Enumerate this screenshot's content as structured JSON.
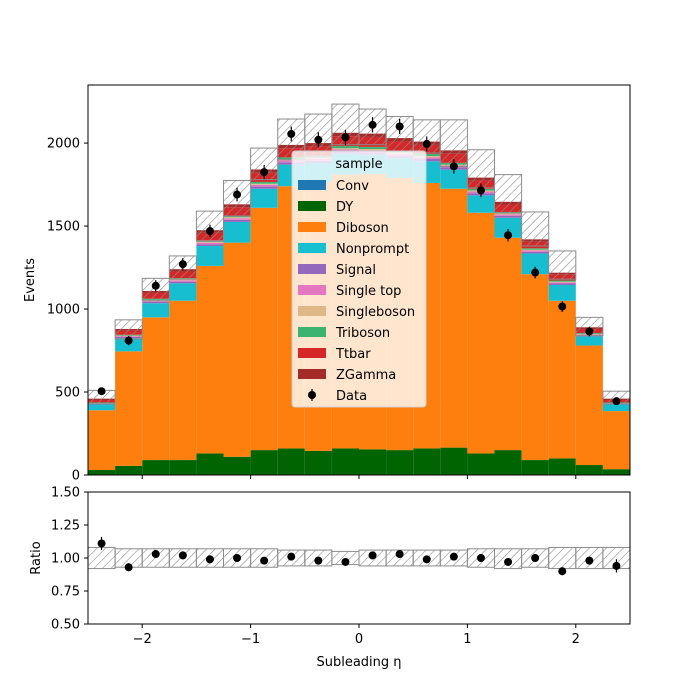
{
  "chart_data": [
    {
      "type": "bar",
      "stacked": true,
      "panel": "main",
      "title": "",
      "xlabel": "",
      "ylabel": "Events",
      "xlim": [
        -2.5,
        2.5
      ],
      "ylim": [
        0,
        2350
      ],
      "yticks": [
        "0",
        "500",
        "1000",
        "1500",
        "2000"
      ],
      "bin_edges": [
        -2.5,
        -2.25,
        -2.0,
        -1.75,
        -1.5,
        -1.25,
        -1.0,
        -0.75,
        -0.5,
        -0.25,
        0.0,
        0.25,
        0.5,
        0.75,
        1.0,
        1.25,
        1.5,
        1.75,
        2.0,
        2.25,
        2.5
      ],
      "series": [
        {
          "name": "Conv",
          "color": "#1f77b4",
          "values": [
            0,
            0,
            0,
            0,
            0,
            0,
            0,
            0,
            0,
            0,
            0,
            0,
            0,
            0,
            0,
            0,
            0,
            0,
            0,
            0
          ]
        },
        {
          "name": "DY",
          "color": "#006400",
          "values": [
            30,
            55,
            90,
            90,
            130,
            110,
            150,
            160,
            145,
            160,
            155,
            150,
            160,
            165,
            130,
            150,
            90,
            100,
            60,
            35
          ]
        },
        {
          "name": "Diboson",
          "color": "#ff7f0e",
          "values": [
            360,
            690,
            860,
            960,
            1130,
            1290,
            1460,
            1580,
            1620,
            1650,
            1660,
            1640,
            1600,
            1560,
            1450,
            1280,
            1120,
            950,
            720,
            350
          ]
        },
        {
          "name": "Nonprompt",
          "color": "#17becf",
          "values": [
            35,
            80,
            85,
            105,
            120,
            125,
            115,
            130,
            115,
            125,
            115,
            120,
            130,
            115,
            105,
            120,
            125,
            95,
            55,
            40
          ]
        },
        {
          "name": "Signal",
          "color": "#9467bd",
          "values": [
            4,
            7,
            9,
            10,
            11,
            12,
            13,
            14,
            14,
            15,
            15,
            14,
            14,
            13,
            13,
            12,
            10,
            9,
            7,
            4
          ]
        },
        {
          "name": "Single top",
          "color": "#e377c2",
          "values": [
            3,
            5,
            7,
            8,
            9,
            10,
            11,
            11,
            12,
            12,
            12,
            12,
            11,
            11,
            10,
            9,
            8,
            7,
            5,
            3
          ]
        },
        {
          "name": "Singleboson",
          "color": "#deb887",
          "values": [
            2,
            3,
            4,
            5,
            5,
            6,
            6,
            7,
            7,
            7,
            7,
            7,
            7,
            6,
            6,
            5,
            5,
            4,
            3,
            2
          ]
        },
        {
          "name": "Triboson",
          "color": "#3cb371",
          "values": [
            3,
            5,
            7,
            8,
            9,
            10,
            11,
            12,
            12,
            13,
            13,
            12,
            12,
            11,
            10,
            9,
            8,
            7,
            5,
            3
          ]
        },
        {
          "name": "Ttbar",
          "color": "#d62728",
          "values": [
            15,
            25,
            35,
            40,
            45,
            50,
            55,
            55,
            55,
            60,
            60,
            55,
            55,
            55,
            50,
            45,
            40,
            35,
            25,
            15
          ]
        },
        {
          "name": "ZGamma",
          "color": "#a52a2a",
          "values": [
            8,
            10,
            12,
            14,
            16,
            18,
            20,
            20,
            20,
            20,
            20,
            20,
            20,
            20,
            18,
            16,
            14,
            12,
            10,
            8
          ]
        }
      ],
      "uncertainty_band": {
        "low": [
          430,
          820,
          1050,
          1180,
          1410,
          1560,
          1780,
          1900,
          1920,
          1990,
          1990,
          1950,
          1940,
          1860,
          1730,
          1580,
          1380,
          1180,
          840,
          430
        ],
        "high": [
          510,
          935,
          1185,
          1320,
          1590,
          1775,
          1970,
          2145,
          2175,
          2235,
          2205,
          2160,
          2140,
          2140,
          1960,
          1810,
          1585,
          1350,
          950,
          505
        ]
      },
      "data": {
        "name": "Data",
        "x": [
          -2.375,
          -2.125,
          -1.875,
          -1.625,
          -1.375,
          -1.125,
          -0.875,
          -0.625,
          -0.375,
          -0.125,
          0.125,
          0.375,
          0.625,
          0.875,
          1.125,
          1.375,
          1.625,
          1.875,
          2.125,
          2.375
        ],
        "y": [
          505,
          810,
          1140,
          1270,
          1470,
          1690,
          1825,
          2055,
          2020,
          2035,
          2110,
          2100,
          1995,
          1860,
          1715,
          1445,
          1220,
          1015,
          865,
          445
        ],
        "err": [
          22,
          28,
          34,
          36,
          38,
          41,
          43,
          45,
          45,
          45,
          46,
          46,
          45,
          43,
          41,
          38,
          35,
          32,
          29,
          21
        ]
      },
      "legend": {
        "title": "sample",
        "location": "center"
      }
    },
    {
      "type": "scatter",
      "panel": "ratio",
      "xlabel": "Subleading η",
      "ylabel": "Ratio",
      "xlim": [
        -2.5,
        2.5
      ],
      "ylim": [
        0.5,
        1.5
      ],
      "xticks": [
        "−2",
        "−1",
        "0",
        "1",
        "2"
      ],
      "yticks": [
        "0.50",
        "0.75",
        "1.00",
        "1.25",
        "1.50"
      ],
      "x": [
        -2.375,
        -2.125,
        -1.875,
        -1.625,
        -1.375,
        -1.125,
        -0.875,
        -0.625,
        -0.375,
        -0.125,
        0.125,
        0.375,
        0.625,
        0.875,
        1.125,
        1.375,
        1.625,
        1.875,
        2.125,
        2.375
      ],
      "y": [
        1.11,
        0.93,
        1.03,
        1.02,
        0.99,
        1.0,
        0.98,
        1.01,
        0.98,
        0.97,
        1.02,
        1.03,
        0.99,
        1.01,
        1.0,
        0.97,
        1.0,
        0.9,
        0.98,
        0.94
      ],
      "err": [
        0.05,
        0.03,
        0.03,
        0.03,
        0.03,
        0.02,
        0.02,
        0.02,
        0.02,
        0.02,
        0.02,
        0.02,
        0.02,
        0.02,
        0.02,
        0.03,
        0.03,
        0.03,
        0.03,
        0.05
      ],
      "band": {
        "low": [
          0.92,
          0.93,
          0.93,
          0.93,
          0.93,
          0.93,
          0.93,
          0.94,
          0.94,
          0.95,
          0.94,
          0.94,
          0.94,
          0.94,
          0.93,
          0.92,
          0.93,
          0.92,
          0.92,
          0.92
        ],
        "high": [
          1.08,
          1.07,
          1.07,
          1.07,
          1.07,
          1.07,
          1.07,
          1.06,
          1.06,
          1.05,
          1.06,
          1.06,
          1.06,
          1.06,
          1.07,
          1.07,
          1.07,
          1.08,
          1.08,
          1.08
        ]
      }
    }
  ]
}
